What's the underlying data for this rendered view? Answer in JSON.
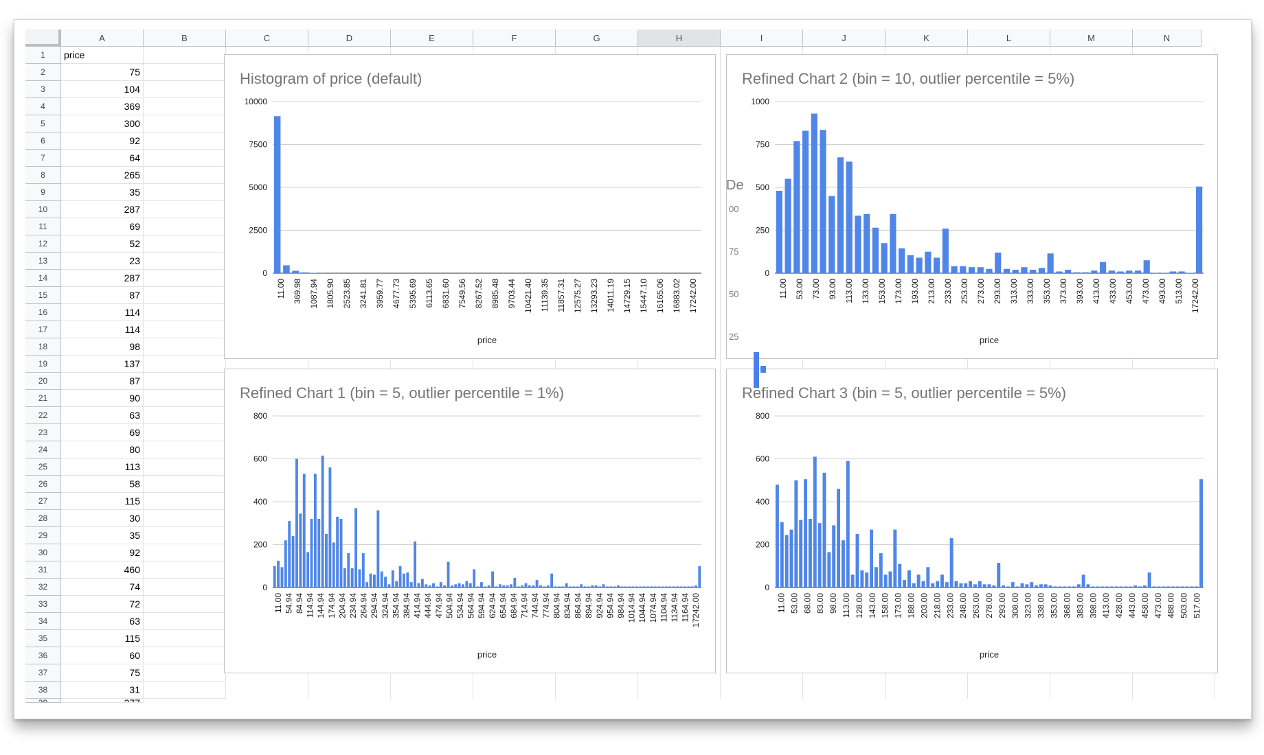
{
  "sheet": {
    "columns": [
      "A",
      "B",
      "C",
      "D",
      "E",
      "F",
      "G",
      "H",
      "I",
      "J",
      "K",
      "L",
      "M",
      "N"
    ],
    "selected_column": "H",
    "row_numbers": [
      "1",
      "2",
      "3",
      "4",
      "5",
      "6",
      "7",
      "8",
      "9",
      "10",
      "11",
      "12",
      "13",
      "14",
      "15",
      "16",
      "17",
      "18",
      "19",
      "20",
      "21",
      "22",
      "23",
      "24",
      "25",
      "26",
      "27",
      "28",
      "29",
      "30",
      "31",
      "32",
      "33",
      "34",
      "35",
      "36",
      "37",
      "38"
    ],
    "header_cell": "price",
    "values": [
      "75",
      "104",
      "369",
      "300",
      "92",
      "64",
      "265",
      "35",
      "287",
      "69",
      "52",
      "23",
      "287",
      "87",
      "114",
      "114",
      "98",
      "137",
      "87",
      "90",
      "63",
      "69",
      "80",
      "113",
      "58",
      "115",
      "30",
      "35",
      "92",
      "460",
      "74",
      "72",
      "63",
      "115",
      "60",
      "75",
      "31"
    ],
    "partial_row_label": "39",
    "partial_row_value": "377"
  },
  "ghost_text": [
    "De",
    "00",
    "75",
    "50",
    "25"
  ],
  "colors": {
    "bar": "#4f86e8",
    "grid": "#d0d0d0",
    "title": "#757575"
  },
  "chart_data": [
    {
      "type": "bar",
      "title": "Histogram of price (default)",
      "xlabel": "price",
      "ylabel": "",
      "ylim": [
        0,
        10000
      ],
      "yticks": [
        "10000",
        "7500",
        "5000",
        "2500",
        "0"
      ],
      "x_tick_labels": [
        "11.00",
        "369.98",
        "1087.94",
        "1805.90",
        "2523.85",
        "3241.81",
        "3959.77",
        "4677.73",
        "5395.69",
        "6113.65",
        "6831.60",
        "7549.56",
        "8267.52",
        "8985.48",
        "9703.44",
        "10421.40",
        "11139.35",
        "11857.31",
        "12575.27",
        "13293.23",
        "14011.19",
        "14729.15",
        "15447.10",
        "16165.06",
        "16883.02",
        "17242.00"
      ],
      "values": [
        9150,
        460,
        140,
        45,
        20,
        10,
        6,
        4,
        3,
        2,
        2,
        1,
        1,
        1,
        0,
        0,
        0,
        0,
        0,
        0,
        0,
        0,
        0,
        0,
        1,
        0,
        0,
        0,
        0,
        0,
        0,
        0,
        0,
        0,
        0,
        0,
        0,
        0,
        0,
        0,
        0,
        0,
        0,
        0,
        0,
        0,
        1
      ]
    },
    {
      "type": "bar",
      "title": "Refined Chart 2 (bin = 10, outlier percentile = 5%)",
      "xlabel": "price",
      "ylabel": "",
      "ylim": [
        0,
        1000
      ],
      "yticks": [
        "1000",
        "750",
        "500",
        "250",
        "0"
      ],
      "x_tick_labels": [
        "11.00",
        "53.00",
        "73.00",
        "93.00",
        "113.00",
        "133.00",
        "153.00",
        "173.00",
        "193.00",
        "213.00",
        "233.00",
        "253.00",
        "273.00",
        "293.00",
        "313.00",
        "333.00",
        "353.00",
        "373.00",
        "393.00",
        "413.00",
        "433.00",
        "453.00",
        "473.00",
        "493.00",
        "513.00",
        "17242.00"
      ],
      "values": [
        480,
        550,
        770,
        830,
        930,
        835,
        450,
        675,
        650,
        335,
        345,
        265,
        175,
        345,
        145,
        105,
        90,
        125,
        90,
        260,
        40,
        40,
        35,
        35,
        25,
        120,
        25,
        20,
        35,
        20,
        30,
        115,
        10,
        20,
        5,
        5,
        15,
        65,
        15,
        10,
        15,
        15,
        75,
        2,
        2,
        10,
        10,
        2,
        505
      ]
    },
    {
      "type": "bar",
      "title": "Refined Chart 1 (bin = 5, outlier percentile = 1%)",
      "xlabel": "price",
      "ylabel": "",
      "ylim": [
        0,
        800
      ],
      "yticks": [
        "800",
        "600",
        "400",
        "200",
        "0"
      ],
      "x_tick_labels": [
        "11.00",
        "54.94",
        "84.94",
        "114.94",
        "144.94",
        "174.94",
        "204.94",
        "234.94",
        "264.94",
        "294.94",
        "324.94",
        "354.94",
        "384.94",
        "414.94",
        "444.94",
        "474.94",
        "504.94",
        "534.94",
        "564.94",
        "594.94",
        "624.94",
        "654.94",
        "684.94",
        "714.94",
        "744.94",
        "774.94",
        "804.94",
        "834.94",
        "864.94",
        "894.94",
        "924.94",
        "954.94",
        "984.94",
        "1014.94",
        "1044.94",
        "1074.94",
        "1104.94",
        "1134.94",
        "1164.94",
        "17242.00"
      ],
      "values": [
        100,
        125,
        95,
        220,
        310,
        240,
        600,
        345,
        530,
        165,
        320,
        530,
        320,
        615,
        250,
        560,
        210,
        330,
        320,
        90,
        160,
        90,
        370,
        85,
        160,
        25,
        65,
        60,
        360,
        75,
        50,
        15,
        80,
        30,
        100,
        65,
        70,
        25,
        215,
        20,
        40,
        15,
        10,
        20,
        5,
        25,
        10,
        120,
        10,
        15,
        20,
        15,
        30,
        20,
        85,
        5,
        25,
        5,
        10,
        75,
        5,
        15,
        10,
        10,
        15,
        45,
        5,
        10,
        20,
        10,
        10,
        35,
        10,
        5,
        10,
        65,
        5,
        5,
        5,
        20,
        5,
        5,
        5,
        15,
        5,
        5,
        10,
        10,
        5,
        15,
        5,
        5,
        5,
        10,
        5,
        5,
        5,
        5,
        5,
        5,
        5,
        5,
        5,
        5,
        5,
        5,
        5,
        5,
        5,
        5,
        5,
        5,
        5,
        5,
        10,
        100
      ]
    },
    {
      "type": "bar",
      "title": "Refined Chart 3 (bin = 5, outlier percentile = 5%)",
      "xlabel": "price",
      "ylabel": "",
      "ylim": [
        0,
        800
      ],
      "yticks": [
        "800",
        "600",
        "400",
        "200",
        "0"
      ],
      "x_tick_labels": [
        "11.00",
        "53.00",
        "68.00",
        "83.00",
        "98.00",
        "113.00",
        "128.00",
        "143.00",
        "158.00",
        "173.00",
        "188.00",
        "203.00",
        "218.00",
        "233.00",
        "248.00",
        "263.00",
        "278.00",
        "293.00",
        "308.00",
        "323.00",
        "338.00",
        "353.00",
        "368.00",
        "383.00",
        "398.00",
        "413.00",
        "428.00",
        "443.00",
        "458.00",
        "473.00",
        "488.00",
        "503.00",
        "517.00"
      ],
      "values": [
        480,
        305,
        245,
        270,
        500,
        315,
        505,
        320,
        610,
        300,
        535,
        165,
        290,
        460,
        220,
        590,
        60,
        250,
        80,
        70,
        270,
        95,
        160,
        60,
        75,
        270,
        110,
        35,
        80,
        20,
        60,
        30,
        95,
        20,
        30,
        60,
        25,
        230,
        30,
        20,
        20,
        30,
        15,
        30,
        15,
        15,
        10,
        115,
        10,
        5,
        25,
        5,
        20,
        15,
        25,
        10,
        15,
        15,
        10,
        5,
        5,
        5,
        5,
        5,
        15,
        60,
        15,
        5,
        5,
        5,
        5,
        5,
        5,
        5,
        5,
        5,
        10,
        5,
        10,
        70,
        5,
        5,
        5,
        5,
        5,
        5,
        5,
        5,
        5,
        5,
        505
      ]
    }
  ]
}
